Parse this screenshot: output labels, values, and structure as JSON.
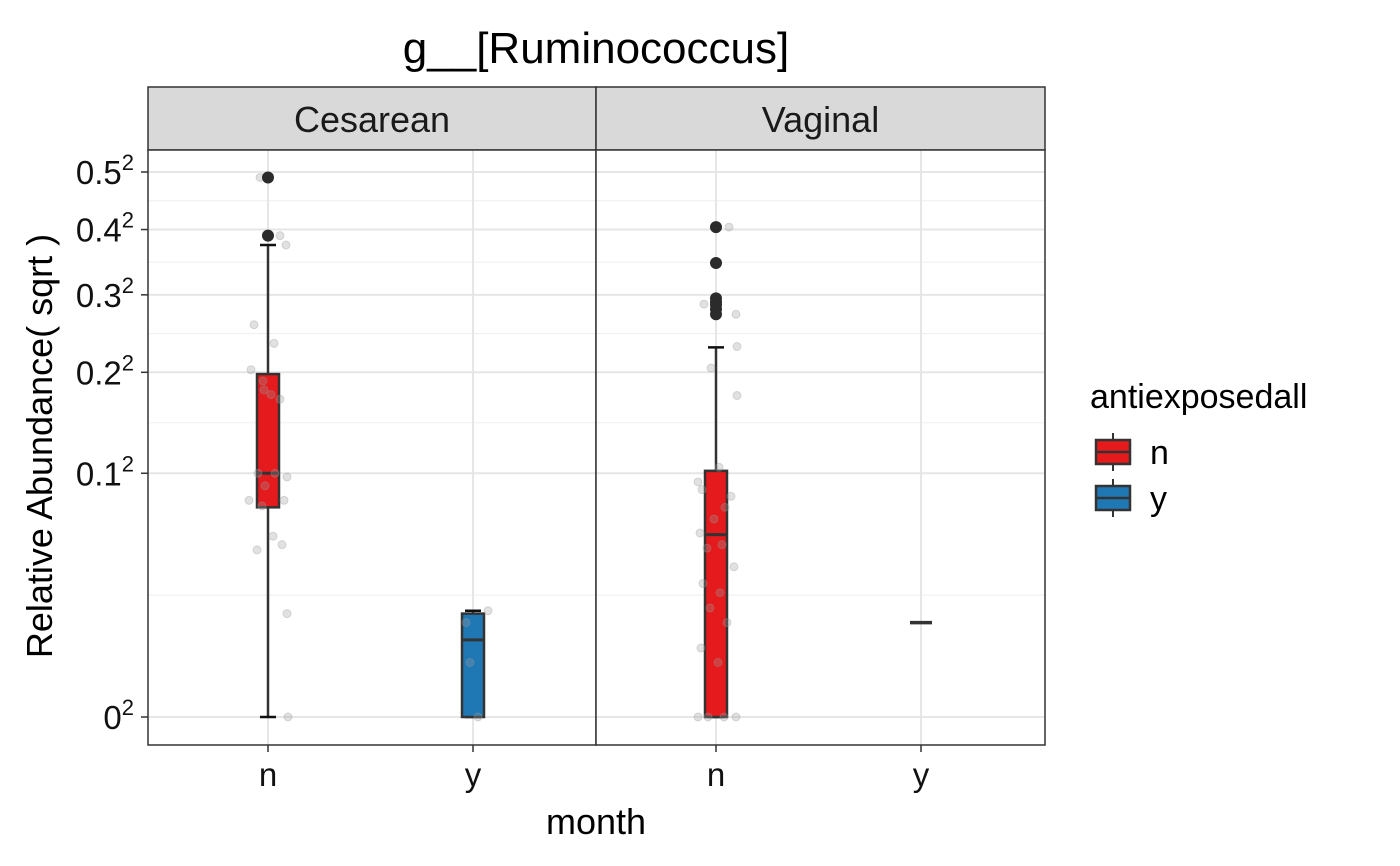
{
  "chart_data": {
    "type": "box",
    "title": "g__[Ruminococcus]",
    "xlabel": "month",
    "ylabel": "Relative Abundance( sqrt )",
    "y_scale": "sqrt",
    "ylim": [
      0,
      0.516
    ],
    "y_ticks": [
      {
        "value": 0,
        "base": "0",
        "exp": "2"
      },
      {
        "value": 0.1,
        "base": "0.1",
        "exp": "2"
      },
      {
        "value": 0.2,
        "base": "0.2",
        "exp": "2"
      },
      {
        "value": 0.3,
        "base": "0.3",
        "exp": "2"
      },
      {
        "value": 0.4,
        "base": "0.4",
        "exp": "2"
      },
      {
        "value": 0.5,
        "base": "0.5",
        "exp": "2"
      }
    ],
    "categories": [
      "n",
      "y"
    ],
    "legend": {
      "title": "antiexposedall",
      "position": "right",
      "entries": [
        {
          "label": "n",
          "color": "#e41a1c"
        },
        {
          "label": "y",
          "color": "#1f78b4"
        }
      ]
    },
    "panels": [
      {
        "name": "Cesarean",
        "boxes": [
          {
            "category": "n",
            "group": "n",
            "whisker_low": 0.0,
            "q1": 0.074,
            "median": 0.1,
            "q3": 0.198,
            "whisker_high": 0.375,
            "outliers": [
              0.49,
              0.39
            ],
            "jitter": [
              {
                "dx": -8,
                "y": 0.49
              },
              {
                "dx": 12,
                "y": 0.39
              },
              {
                "dx": 18,
                "y": 0.375
              },
              {
                "dx": -14,
                "y": 0.259
              },
              {
                "dx": 6,
                "y": 0.235
              },
              {
                "dx": -17,
                "y": 0.203
              },
              {
                "dx": -5,
                "y": 0.19
              },
              {
                "dx": -4,
                "y": 0.18
              },
              {
                "dx": 3,
                "y": 0.175
              },
              {
                "dx": 12,
                "y": 0.17
              },
              {
                "dx": -10,
                "y": 0.1
              },
              {
                "dx": 7,
                "y": 0.1
              },
              {
                "dx": 19,
                "y": 0.097
              },
              {
                "dx": -3,
                "y": 0.09
              },
              {
                "dx": -19,
                "y": 0.079
              },
              {
                "dx": 16,
                "y": 0.079
              },
              {
                "dx": -6,
                "y": 0.075
              },
              {
                "dx": 5,
                "y": 0.055
              },
              {
                "dx": 14,
                "y": 0.05
              },
              {
                "dx": -11,
                "y": 0.047
              },
              {
                "dx": 19,
                "y": 0.018
              },
              {
                "dx": 20,
                "y": 0.0
              }
            ]
          },
          {
            "category": "y",
            "group": "y",
            "whisker_low": 0.0,
            "q1": 0.0,
            "median": 0.01,
            "q3": 0.018,
            "whisker_high": 0.019,
            "outliers": [],
            "jitter": [
              {
                "dx": -7,
                "y": 0.015
              },
              {
                "dx": 15,
                "y": 0.019
              },
              {
                "dx": -3,
                "y": 0.005
              },
              {
                "dx": 5,
                "y": 0.0
              }
            ]
          }
        ]
      },
      {
        "name": "Vaginal",
        "boxes": [
          {
            "category": "n",
            "group": "n",
            "whisker_low": 0.0,
            "q1": 0.0,
            "median": 0.056,
            "q3": 0.102,
            "whisker_high": 0.23,
            "outliers": [
              0.404,
              0.347,
              0.295,
              0.29,
              0.286,
              0.28,
              0.273
            ],
            "jitter": [
              {
                "dx": 13,
                "y": 0.404
              },
              {
                "dx": -12,
                "y": 0.287
              },
              {
                "dx": 20,
                "y": 0.273
              },
              {
                "dx": 21,
                "y": 0.231
              },
              {
                "dx": -5,
                "y": 0.205
              },
              {
                "dx": 21,
                "y": 0.174
              },
              {
                "dx": 3,
                "y": 0.105
              },
              {
                "dx": -18,
                "y": 0.093
              },
              {
                "dx": -14,
                "y": 0.087
              },
              {
                "dx": 15,
                "y": 0.082
              },
              {
                "dx": 9,
                "y": 0.074
              },
              {
                "dx": -2,
                "y": 0.066
              },
              {
                "dx": -16,
                "y": 0.057
              },
              {
                "dx": 6,
                "y": 0.05
              },
              {
                "dx": -9,
                "y": 0.048
              },
              {
                "dx": 18,
                "y": 0.038
              },
              {
                "dx": -13,
                "y": 0.03
              },
              {
                "dx": 4,
                "y": 0.026
              },
              {
                "dx": -6,
                "y": 0.02
              },
              {
                "dx": 11,
                "y": 0.015
              },
              {
                "dx": -15,
                "y": 0.008
              },
              {
                "dx": 2,
                "y": 0.005
              },
              {
                "dx": -18,
                "y": 0.0
              },
              {
                "dx": -8,
                "y": 0.0
              },
              {
                "dx": 8,
                "y": 0.0
              },
              {
                "dx": 20,
                "y": 0.0
              }
            ]
          },
          {
            "category": "y",
            "group": "y",
            "whisker_low": 0.015,
            "q1": 0.015,
            "median": 0.015,
            "q3": 0.015,
            "whisker_high": 0.015,
            "outliers": [],
            "jitter": []
          }
        ]
      }
    ]
  }
}
